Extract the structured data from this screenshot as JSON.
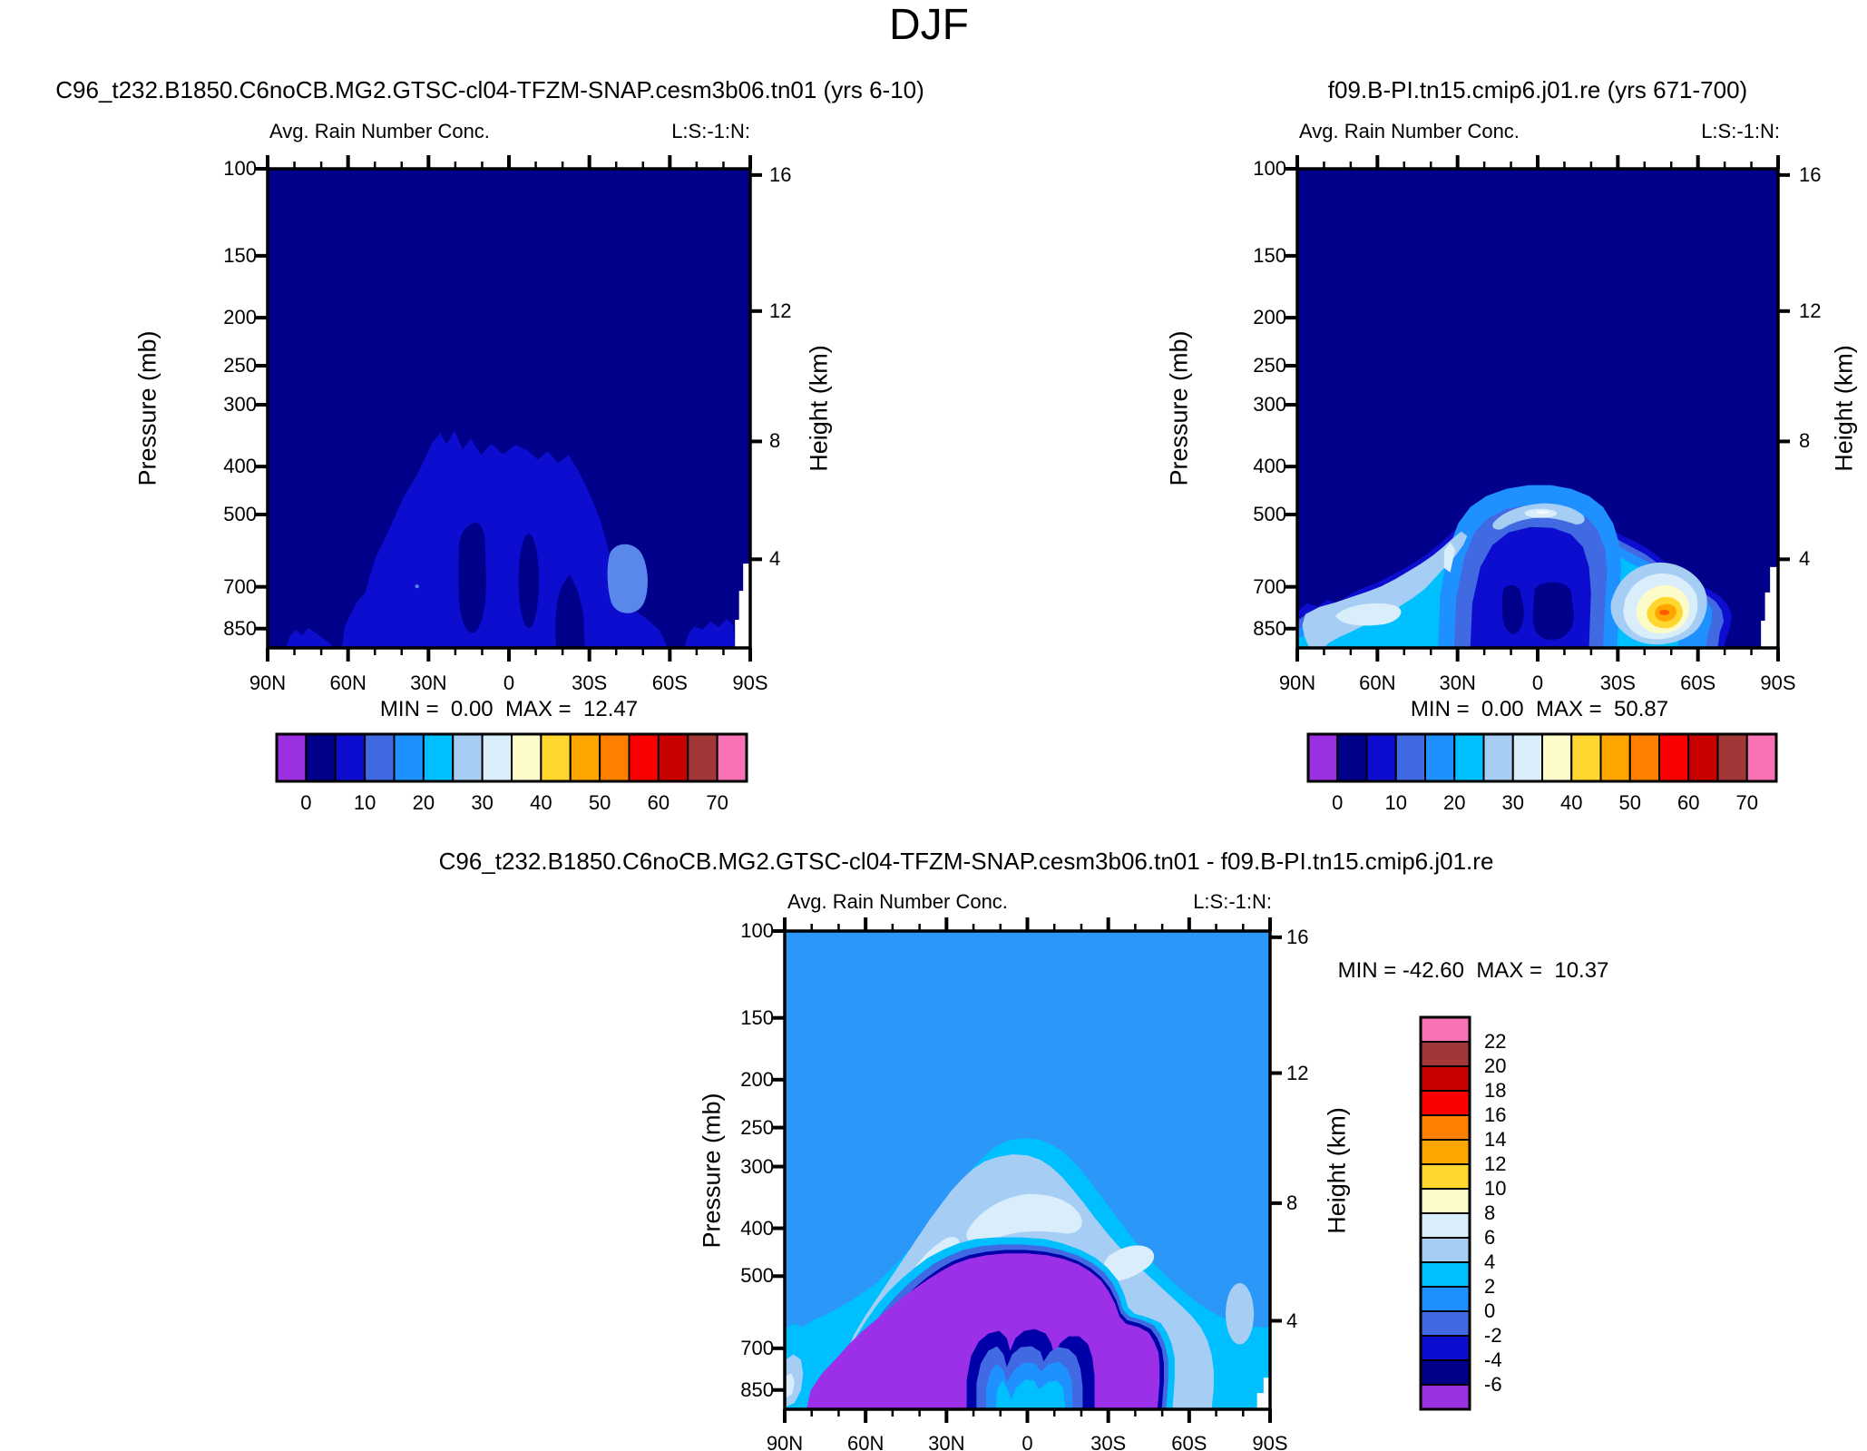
{
  "page_title": "DJF",
  "palette": [
    "#9B30E0",
    "#00008B",
    "#0D0DCF",
    "#4169E1",
    "#1E90FF",
    "#00BFFF",
    "#A6CEF5",
    "#D9EEFA",
    "#FDFBC8",
    "#FFD72E",
    "#FFA500",
    "#FF7F00",
    "#FA0000",
    "#C80000",
    "#A23737",
    "#F973B4"
  ],
  "diff_colors": {
    "background": "#2B97F8",
    "ring_navy": "#0000A8",
    "purple": "#9B30E8"
  },
  "panels": [
    {
      "title": "C96_t232.B1850.C6noCB.MG2.GTSC-cl04-TFZM-SNAP.cesm3b06.tn01 (yrs 6-10)",
      "left_string": "Avg. Rain Number Conc.",
      "right_string": "L:S:-1:N:",
      "y_axis_label": "Pressure (mb)",
      "height_axis_label": "Height (km)",
      "y_ticks": [
        "100",
        "150",
        "200",
        "250",
        "300",
        "400",
        "500",
        "700",
        "850"
      ],
      "x_ticks": [
        "90N",
        "60N",
        "30N",
        "0",
        "30S",
        "60S",
        "90S"
      ],
      "height_ticks": [
        "16",
        "12",
        "8",
        "4"
      ],
      "stats": "MIN =  0.00  MAX =  12.47",
      "colorbar": {
        "labels": [
          "0",
          "10",
          "20",
          "30",
          "40",
          "50",
          "60",
          "70"
        ]
      }
    },
    {
      "title": "f09.B-PI.tn15.cmip6.j01.re (yrs 671-700)",
      "left_string": "Avg. Rain Number Conc.",
      "right_string": "L:S:-1:N:",
      "y_axis_label": "Pressure (mb)",
      "height_axis_label": "Height (km)",
      "y_ticks": [
        "100",
        "150",
        "200",
        "250",
        "300",
        "400",
        "500",
        "700",
        "850"
      ],
      "x_ticks": [
        "90N",
        "60N",
        "30N",
        "0",
        "30S",
        "60S",
        "90S"
      ],
      "height_ticks": [
        "16",
        "12",
        "8",
        "4"
      ],
      "stats": "MIN =  0.00  MAX =  50.87",
      "colorbar": {
        "labels": [
          "0",
          "10",
          "20",
          "30",
          "40",
          "50",
          "60",
          "70"
        ]
      }
    },
    {
      "title": "C96_t232.B1850.C6noCB.MG2.GTSC-cl04-TFZM-SNAP.cesm3b06.tn01 - f09.B-PI.tn15.cmip6.j01.re",
      "left_string": "Avg. Rain Number Conc.",
      "right_string": "L:S:-1:N:",
      "y_axis_label": "Pressure (mb)",
      "height_axis_label": "Height (km)",
      "y_ticks": [
        "100",
        "150",
        "200",
        "250",
        "300",
        "400",
        "500",
        "700",
        "850"
      ],
      "x_ticks": [
        "90N",
        "60N",
        "30N",
        "0",
        "30S",
        "60S",
        "90S"
      ],
      "height_ticks": [
        "16",
        "12",
        "8",
        "4"
      ],
      "stats": "MIN = -42.60  MAX =  10.37",
      "colorbar": {
        "labels": [
          "22",
          "20",
          "18",
          "16",
          "14",
          "12",
          "10",
          "8",
          "6",
          "4",
          "2",
          "0",
          "-2",
          "-4",
          "-6"
        ]
      }
    }
  ],
  "chart_data": [
    {
      "type": "contour",
      "title": "C96_t232.B1850.C6noCB.MG2.GTSC-cl04-TFZM-SNAP.cesm3b06.tn01 (yrs 6-10)",
      "variable": "Avg. Rain Number Conc.",
      "season": "DJF",
      "xlabel_ticks": [
        "90N",
        "60N",
        "30N",
        "0",
        "30S",
        "60S",
        "90S"
      ],
      "ylabel": "Pressure (mb)",
      "y_ticks_mb": [
        100,
        150,
        200,
        250,
        300,
        400,
        500,
        700,
        850
      ],
      "secondary_ylabel": "Height (km)",
      "height_ticks_km": [
        16,
        12,
        8,
        4
      ],
      "contour_levels": [
        0,
        5,
        10,
        15,
        20,
        25,
        30,
        35,
        40,
        45,
        50,
        55,
        60,
        65,
        70
      ],
      "min": 0.0,
      "max": 12.47,
      "legend_position": "bottom",
      "notes": "Values mostly < 15: navy background, low-level blue maximum band 60N-60S peaking near 400-850 mb, small brighter spot near 40S 700 mb, white terrain gap near 90S"
    },
    {
      "type": "contour",
      "title": "f09.B-PI.tn15.cmip6.j01.re (yrs 671-700)",
      "variable": "Avg. Rain Number Conc.",
      "season": "DJF",
      "xlabel_ticks": [
        "90N",
        "60N",
        "30N",
        "0",
        "30S",
        "60S",
        "90S"
      ],
      "ylabel": "Pressure (mb)",
      "y_ticks_mb": [
        100,
        150,
        200,
        250,
        300,
        400,
        500,
        700,
        850
      ],
      "secondary_ylabel": "Height (km)",
      "height_ticks_km": [
        16,
        12,
        8,
        4
      ],
      "contour_levels": [
        0,
        5,
        10,
        15,
        20,
        25,
        30,
        35,
        40,
        45,
        50,
        55,
        60,
        65,
        70
      ],
      "min": 0.0,
      "max": 50.87,
      "legend_position": "bottom",
      "notes": "Arch of enhanced values peaking ~500 mb over tropics, strong surface maximum ~45S/830 mb reaching 45-50 (yellow-orange core), light band 90N-30N near surface"
    },
    {
      "type": "contour",
      "title": "C96_t232.B1850.C6noCB.MG2.GTSC-cl04-TFZM-SNAP.cesm3b06.tn01 - f09.B-PI.tn15.cmip6.j01.re",
      "variable": "Avg. Rain Number Conc.",
      "season": "DJF",
      "xlabel_ticks": [
        "90N",
        "60N",
        "30N",
        "0",
        "30S",
        "60S",
        "90S"
      ],
      "ylabel": "Pressure (mb)",
      "y_ticks_mb": [
        100,
        150,
        200,
        250,
        300,
        400,
        500,
        700,
        850
      ],
      "secondary_ylabel": "Height (km)",
      "height_ticks_km": [
        16,
        12,
        8,
        4
      ],
      "contour_levels": [
        -6,
        -4,
        -2,
        0,
        2,
        4,
        6,
        8,
        10,
        12,
        14,
        16,
        18,
        20,
        22
      ],
      "min": -42.6,
      "max": 10.37,
      "legend_position": "right",
      "notes": "Difference plot: near-zero blue background aloft, negative dome (< -6, purple) below ~500 mb between 60N and 55S with dark-blue ring, small less-negative W-shaped feature near equator at surface"
    }
  ]
}
